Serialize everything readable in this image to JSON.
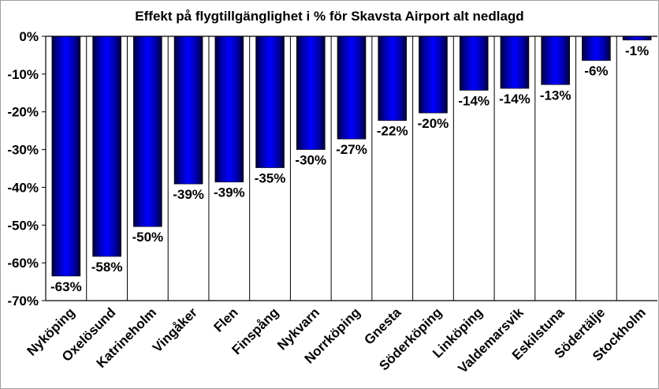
{
  "chart_data": {
    "type": "bar",
    "title": "Effekt på flygtillgänglighet i % för Skavsta Airport alt nedlagd",
    "xlabel": "",
    "ylabel": "",
    "ylim": [
      -70,
      0
    ],
    "yticks": [
      0,
      -10,
      -20,
      -30,
      -40,
      -50,
      -60,
      -70
    ],
    "ytick_labels": [
      "0%",
      "-10%",
      "-20%",
      "-30%",
      "-40%",
      "-50%",
      "-60%",
      "-70%"
    ],
    "categories": [
      "Nyköping",
      "Oxelösund",
      "Katrineholm",
      "Vingåker",
      "Flen",
      "Finspång",
      "Nykvarn",
      "Norrköping",
      "Gnesta",
      "Söderköping",
      "Linköping",
      "Valdemarsvik",
      "Eskilstuna",
      "Södertälje",
      "Stockholm"
    ],
    "values": [
      -63.5,
      -58.3,
      -50.4,
      -39.1,
      -38.6,
      -34.8,
      -30.0,
      -27.2,
      -22.3,
      -20.3,
      -14.3,
      -13.8,
      -12.8,
      -6.4,
      -1.0
    ],
    "data_labels": [
      "-63%",
      "-58%",
      "-50%",
      "-39%",
      "-39%",
      "-35%",
      "-30%",
      "-27%",
      "-22%",
      "-20%",
      "-14%",
      "-14%",
      "-13%",
      "-6%",
      "-1%"
    ],
    "grid": false,
    "legend": "none",
    "bar_color": "#0000e0"
  }
}
